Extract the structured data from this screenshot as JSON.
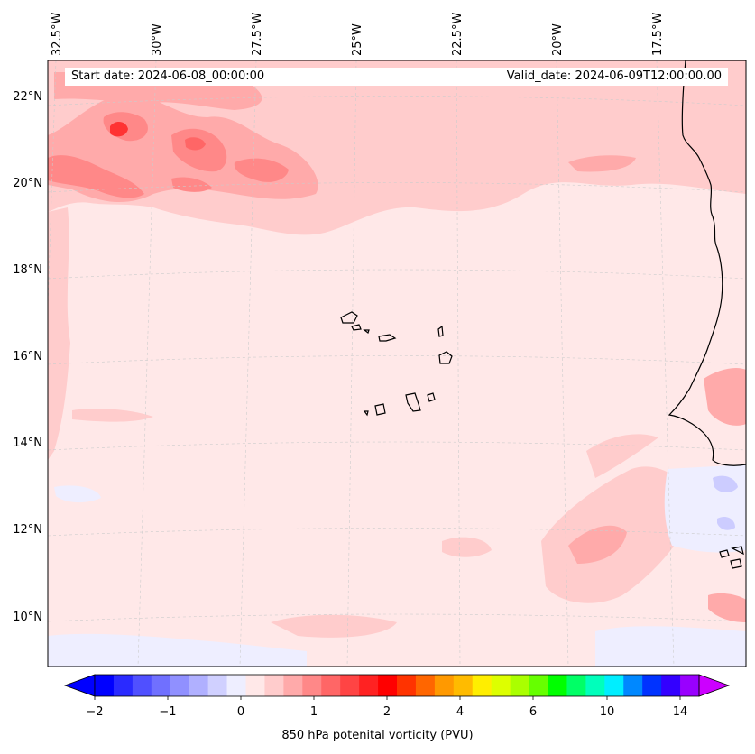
{
  "map": {
    "start_label": "Start date: 2024-06-08_00:00:00",
    "valid_label": "Valid_date: 2024-06-09T12:00:00.00",
    "lon_labels": [
      "32.5°W",
      "30°W",
      "27.5°W",
      "25°W",
      "22.5°W",
      "20°W",
      "17.5°W"
    ],
    "lat_labels": [
      "22°N",
      "20°N",
      "18°N",
      "16°N",
      "14°N",
      "12°N",
      "10°N"
    ],
    "field_colors": {
      "background": "#ffe8e8",
      "light_red": "#ffcccc",
      "mid_red": "#ffaaaa",
      "strong_red": "#ff8888",
      "peak_red": "#ff3333",
      "light_blue": "#eeeeff",
      "mid_blue": "#ccccff"
    }
  },
  "colorbar": {
    "label": "850 hPa potenital vorticity (PVU)",
    "tick_labels": [
      "−2",
      "−1",
      "0",
      "1",
      "2",
      "4",
      "6",
      "10",
      "14"
    ],
    "colors": [
      "#0000ff",
      "#2a2aff",
      "#5050ff",
      "#7070ff",
      "#9090ff",
      "#b0b0ff",
      "#d0d0ff",
      "#eeeeff",
      "#ffe8e8",
      "#ffcccc",
      "#ffaaaa",
      "#ff8888",
      "#ff6666",
      "#ff4444",
      "#ff2222",
      "#ff0000",
      "#ff3300",
      "#ff6600",
      "#ff9900",
      "#ffbb00",
      "#ffee00",
      "#ddff00",
      "#aaff00",
      "#66ff00",
      "#00ff00",
      "#00ff66",
      "#00ffbb",
      "#00eeff",
      "#0088ff",
      "#0033ff",
      "#3300ff",
      "#9900ff"
    ],
    "under_color": "#0000ff",
    "over_color": "#cc00ff"
  }
}
